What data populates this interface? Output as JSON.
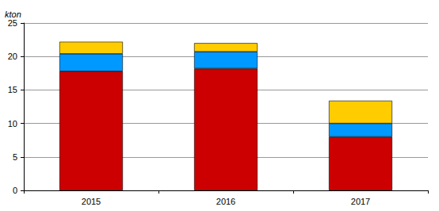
{
  "chart_data": {
    "type": "bar",
    "stacked": true,
    "y_label": "kton",
    "categories": [
      "2015",
      "2016",
      "2017"
    ],
    "series": [
      {
        "color": "#cc0000",
        "values": [
          17.8,
          18.2,
          8.0
        ]
      },
      {
        "color": "#0099ff",
        "values": [
          2.6,
          2.5,
          2.0
        ]
      },
      {
        "color": "#ffcc00",
        "values": [
          1.8,
          1.3,
          3.4
        ]
      }
    ],
    "ylim": [
      0,
      25
    ],
    "yticks": [
      0,
      5,
      10,
      15,
      20,
      25
    ],
    "grid": true
  }
}
